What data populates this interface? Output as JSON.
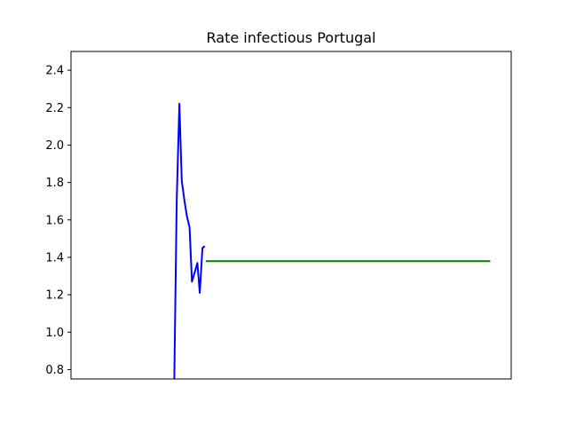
{
  "chart_data": {
    "type": "line",
    "title": "Rate infectious Portugal",
    "xlabel": "",
    "ylabel": "",
    "ylim": [
      0.75,
      2.5
    ],
    "xlim": [
      0,
      147
    ],
    "yticks": [
      "0.8",
      "1.0",
      "1.2",
      "1.4",
      "1.6",
      "1.8",
      "2.0",
      "2.2",
      "2.4"
    ],
    "xticks_visible": false,
    "grid": false,
    "legend": "none",
    "series": [
      {
        "color": "#0000ff",
        "x": [
          34.5,
          35.3,
          36.2,
          37.0,
          37.9,
          38.7,
          39.6,
          40.4,
          41.3,
          42.2,
          43.0,
          43.9,
          44.7
        ],
        "y": [
          0.75,
          1.7,
          2.22,
          1.81,
          1.7,
          1.62,
          1.56,
          1.27,
          1.32,
          1.37,
          1.21,
          1.45,
          1.46
        ]
      },
      {
        "color": "#008000",
        "x": [
          45.0,
          140.0
        ],
        "y": [
          1.38,
          1.38
        ]
      }
    ]
  }
}
